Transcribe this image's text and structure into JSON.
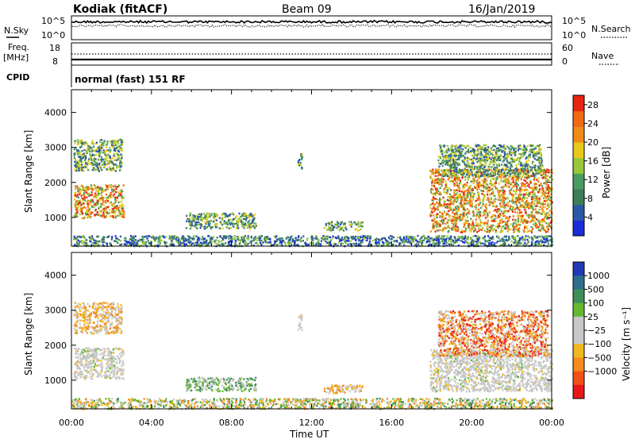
{
  "header": {
    "station": "Kodiak (fitACF)",
    "beam": "Beam 09",
    "date": "16/Jan/2019"
  },
  "nsky_panel": {
    "left_label": "N.Sky",
    "left_ticks": [
      "10^5",
      "10^0"
    ],
    "right_label": "N.Search",
    "right_ticks": [
      "10^5",
      "10^0"
    ]
  },
  "freq_panel": {
    "left_label_line1": "Freq.",
    "left_label_line2": "[MHz]",
    "left_ticks": [
      "18",
      "8"
    ],
    "right_label": "Nave",
    "right_ticks": [
      "60",
      "0"
    ]
  },
  "cpid": {
    "label": "CPID",
    "value": "normal (fast) 151 RF"
  },
  "colors": {
    "power_scale": [
      "#1a2cd8",
      "#2a58a6",
      "#3f7d56",
      "#4a9b60",
      "#98c83a",
      "#e8c81e",
      "#f08a18",
      "#ef6a12",
      "#e82512"
    ],
    "velocity_scale": [
      "#e81818",
      "#f05018",
      "#f58a1e",
      "#f0b820",
      "#c8c8c8",
      "#c8c8c8",
      "#66b832",
      "#3e8e5a",
      "#2e6e8a",
      "#2238b8"
    ]
  },
  "chart_data": [
    {
      "type": "heatmap",
      "name": "power",
      "xlabel": "",
      "ylabel": "Slant Range [km]",
      "xticks": [
        "00:00",
        "04:00",
        "08:00",
        "12:00",
        "16:00",
        "20:00",
        "00:00"
      ],
      "yticks": [
        1000,
        2000,
        3000,
        4000
      ],
      "xlim_hours": [
        0,
        24
      ],
      "ylim": [
        180,
        4650
      ],
      "colorbar": {
        "label": "Power [dB]",
        "ticks": [
          4,
          8,
          12,
          16,
          20,
          24,
          28
        ],
        "range": [
          0,
          30
        ]
      },
      "scatter_regions": [
        {
          "t0": 0.1,
          "t1": 2.6,
          "r0": 1000,
          "r1": 1950,
          "level": "high"
        },
        {
          "t0": 0.1,
          "t1": 2.5,
          "r0": 2350,
          "r1": 3250,
          "level": "mid"
        },
        {
          "t0": 5.7,
          "t1": 9.2,
          "r0": 700,
          "r1": 1150,
          "level": "mid"
        },
        {
          "t0": 11.3,
          "t1": 11.5,
          "r0": 2400,
          "r1": 2900,
          "level": "mid"
        },
        {
          "t0": 12.6,
          "t1": 14.5,
          "r0": 650,
          "r1": 900,
          "level": "mid"
        },
        {
          "t0": 0.0,
          "t1": 24.0,
          "r0": 200,
          "r1": 500,
          "level": "low"
        },
        {
          "t0": 17.9,
          "t1": 24.0,
          "r0": 600,
          "r1": 2400,
          "level": "high"
        },
        {
          "t0": 18.3,
          "t1": 23.5,
          "r0": 2200,
          "r1": 3100,
          "level": "mid"
        }
      ]
    },
    {
      "type": "heatmap",
      "name": "velocity",
      "xlabel": "Time UT",
      "ylabel": "Slant Range [km]",
      "xticks": [
        "00:00",
        "04:00",
        "08:00",
        "12:00",
        "16:00",
        "20:00",
        "00:00"
      ],
      "yticks": [
        1000,
        2000,
        3000,
        4000
      ],
      "xlim_hours": [
        0,
        24
      ],
      "ylim": [
        180,
        4650
      ],
      "colorbar": {
        "label": "Velocity [m s⁻¹]",
        "ticks": [
          "1000",
          "500",
          "100",
          "25",
          "−25",
          "−100",
          "−500",
          "−1000"
        ]
      },
      "scatter_regions": [
        {
          "t0": 0.1,
          "t1": 2.6,
          "r0": 1050,
          "r1": 1950,
          "level": "grey"
        },
        {
          "t0": 0.1,
          "t1": 2.5,
          "r0": 2350,
          "r1": 3250,
          "level": "orange"
        },
        {
          "t0": 5.7,
          "t1": 9.2,
          "r0": 700,
          "r1": 1100,
          "level": "green"
        },
        {
          "t0": 11.3,
          "t1": 11.5,
          "r0": 2400,
          "r1": 2900,
          "level": "grey"
        },
        {
          "t0": 12.6,
          "t1": 14.5,
          "r0": 650,
          "r1": 900,
          "level": "orange"
        },
        {
          "t0": 0.0,
          "t1": 24.0,
          "r0": 200,
          "r1": 500,
          "level": "mixed"
        },
        {
          "t0": 17.9,
          "t1": 24.0,
          "r0": 700,
          "r1": 1900,
          "level": "grey"
        },
        {
          "t0": 18.3,
          "t1": 23.8,
          "r0": 1700,
          "r1": 3000,
          "level": "redorange"
        }
      ]
    }
  ]
}
